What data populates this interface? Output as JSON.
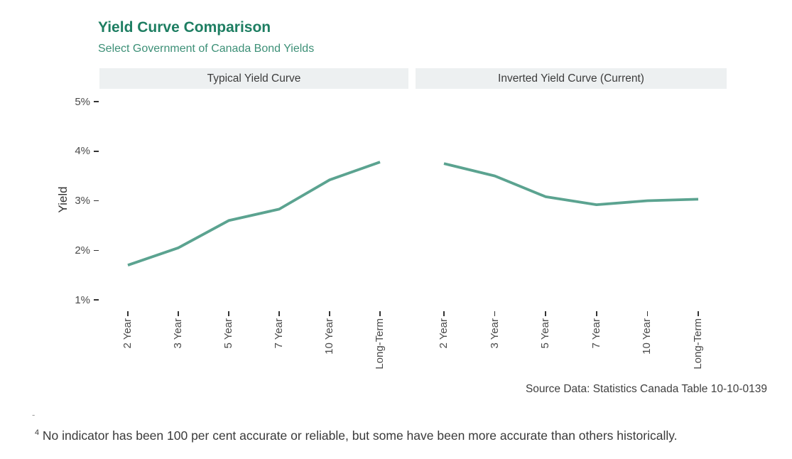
{
  "title": "Yield Curve Comparison",
  "subtitle": "Select Government of Canada Bond Yields",
  "source": "Source Data: Statistics Canada Table 10-10-0139",
  "stray_mark": "-",
  "footnote": {
    "marker": "4",
    "text": " No indicator has been 100 per cent accurate or reliable, but some have been more accurate than others historically."
  },
  "colors": {
    "title": "#1e7e62",
    "subtitle": "#3d9077",
    "line": "#5ba390",
    "strip_bg": "#edf0f1"
  },
  "chart_data": {
    "type": "line",
    "title": "Yield Curve Comparison",
    "subtitle": "Select Government of Canada Bond Yields",
    "ylabel": "Yield",
    "xlabel": "",
    "categories": [
      "2 Year",
      "3 Year",
      "5 Year",
      "7 Year",
      "10 Year",
      "Long-Term"
    ],
    "facets": [
      {
        "label": "Typical Yield Curve",
        "values": [
          1.7,
          2.05,
          2.6,
          2.83,
          3.42,
          3.78
        ]
      },
      {
        "label": "Inverted Yield Curve (Current)",
        "values": [
          3.75,
          3.5,
          3.08,
          2.92,
          3.0,
          3.03
        ]
      }
    ],
    "y_tick_labels": [
      "5%",
      "4%",
      "3%",
      "2%",
      "1%"
    ],
    "y_tick_values": [
      5,
      4,
      3,
      2,
      1
    ],
    "ylim": [
      0.7,
      5.3
    ],
    "grid": "off",
    "legend": "none",
    "x_labels_rotated_90": true
  }
}
